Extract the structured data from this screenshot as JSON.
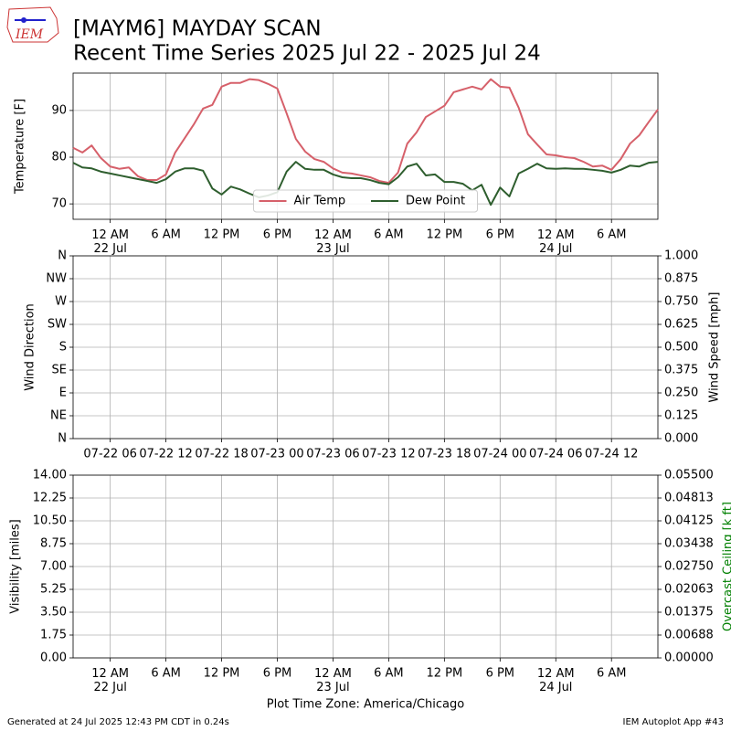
{
  "title": "[MAYM6] MAYDAY SCAN",
  "subtitle": "Recent Time Series 2025 Jul 22 - 2025 Jul 24",
  "logo": "IEM",
  "footer_left": "Generated at 24 Jul 2025 12:43 PM CDT in 0.24s",
  "footer_right": "IEM Autoplot App #43",
  "chart_data": [
    {
      "type": "line",
      "ylabel": "Temperature [F]",
      "grid": true,
      "legend": "lower center",
      "xlim": [
        "2025-07-21T20:00",
        "2025-07-24T11:00"
      ],
      "xticks": [
        {
          "value": "2025-07-22T00:00",
          "label": "12 AM\n22 Jul"
        },
        {
          "value": "2025-07-22T06:00",
          "label": "6 AM"
        },
        {
          "value": "2025-07-22T12:00",
          "label": "12 PM"
        },
        {
          "value": "2025-07-22T18:00",
          "label": "6 PM"
        },
        {
          "value": "2025-07-23T00:00",
          "label": "12 AM\n23 Jul"
        },
        {
          "value": "2025-07-23T06:00",
          "label": "6 AM"
        },
        {
          "value": "2025-07-23T12:00",
          "label": "12 PM"
        },
        {
          "value": "2025-07-23T18:00",
          "label": "6 PM"
        },
        {
          "value": "2025-07-24T00:00",
          "label": "12 AM\n24 Jul"
        },
        {
          "value": "2025-07-24T06:00",
          "label": "6 AM"
        }
      ],
      "ylim": [
        66.7,
        98.0
      ],
      "yticks": [
        70,
        80,
        90
      ],
      "x": [
        "2025-07-21T20:00",
        "2025-07-21T21:00",
        "2025-07-21T22:00",
        "2025-07-21T23:00",
        "2025-07-22T00:00",
        "2025-07-22T01:00",
        "2025-07-22T02:00",
        "2025-07-22T03:00",
        "2025-07-22T04:00",
        "2025-07-22T05:00",
        "2025-07-22T06:00",
        "2025-07-22T07:00",
        "2025-07-22T08:00",
        "2025-07-22T09:00",
        "2025-07-22T10:00",
        "2025-07-22T11:00",
        "2025-07-22T12:00",
        "2025-07-22T13:00",
        "2025-07-22T14:00",
        "2025-07-22T15:00",
        "2025-07-22T16:00",
        "2025-07-22T17:00",
        "2025-07-22T18:00",
        "2025-07-22T19:00",
        "2025-07-22T20:00",
        "2025-07-22T21:00",
        "2025-07-22T22:00",
        "2025-07-22T23:00",
        "2025-07-23T00:00",
        "2025-07-23T01:00",
        "2025-07-23T02:00",
        "2025-07-23T03:00",
        "2025-07-23T04:00",
        "2025-07-23T05:00",
        "2025-07-23T06:00",
        "2025-07-23T07:00",
        "2025-07-23T08:00",
        "2025-07-23T09:00",
        "2025-07-23T10:00",
        "2025-07-23T11:00",
        "2025-07-23T12:00",
        "2025-07-23T13:00",
        "2025-07-23T14:00",
        "2025-07-23T15:00",
        "2025-07-23T16:00",
        "2025-07-23T17:00",
        "2025-07-23T18:00",
        "2025-07-23T19:00",
        "2025-07-23T20:00",
        "2025-07-23T21:00",
        "2025-07-23T22:00",
        "2025-07-23T23:00",
        "2025-07-24T00:00",
        "2025-07-24T01:00",
        "2025-07-24T02:00",
        "2025-07-24T03:00",
        "2025-07-24T04:00",
        "2025-07-24T05:00",
        "2025-07-24T06:00",
        "2025-07-24T07:00",
        "2025-07-24T08:00",
        "2025-07-24T09:00",
        "2025-07-24T10:00",
        "2025-07-24T11:00"
      ],
      "series": [
        {
          "name": "Air Temp",
          "color": "#d6606a",
          "values": [
            82.0,
            81.0,
            82.5,
            79.8,
            78.0,
            77.5,
            77.8,
            75.9,
            75.1,
            75.1,
            76.3,
            81.0,
            84.0,
            87.0,
            90.4,
            91.2,
            95.1,
            95.9,
            95.9,
            96.7,
            96.5,
            95.7,
            94.7,
            89.4,
            83.9,
            81.2,
            79.6,
            79.0,
            77.6,
            76.7,
            76.5,
            76.1,
            75.7,
            74.9,
            74.5,
            76.7,
            82.9,
            85.3,
            88.6,
            89.8,
            91.0,
            93.9,
            94.5,
            95.1,
            94.5,
            96.7,
            95.1,
            94.9,
            90.6,
            84.9,
            82.7,
            80.6,
            80.4,
            80.0,
            79.8,
            79.0,
            78.0,
            78.2,
            77.3,
            79.6,
            82.9,
            84.7,
            87.5,
            90.2
          ]
        },
        {
          "name": "Dew Point",
          "color": "#2e5e2e",
          "values": [
            78.8,
            77.8,
            77.6,
            76.9,
            76.5,
            76.1,
            75.7,
            75.3,
            74.9,
            74.5,
            75.3,
            76.9,
            77.6,
            77.6,
            77.1,
            73.3,
            72.0,
            73.7,
            73.1,
            72.2,
            71.4,
            71.8,
            72.5,
            76.9,
            79.0,
            77.5,
            77.3,
            77.3,
            76.3,
            75.7,
            75.5,
            75.5,
            75.1,
            74.5,
            74.2,
            75.7,
            78.0,
            78.6,
            76.1,
            76.3,
            74.7,
            74.7,
            74.3,
            72.9,
            74.1,
            69.8,
            73.5,
            71.6,
            76.5,
            77.5,
            78.6,
            77.6,
            77.5,
            77.6,
            77.5,
            77.5,
            77.3,
            77.1,
            76.7,
            77.3,
            78.2,
            78.0,
            78.8,
            79.0
          ]
        }
      ]
    },
    {
      "type": "line",
      "ylabel": "Wind Direction",
      "y2label": "Wind Speed [mph]",
      "grid": true,
      "xlim": [
        "2025-07-21T20:00",
        "2025-07-24T11:00"
      ],
      "xticks": [
        {
          "value": "2025-07-22T00:00",
          "label": "07-22 06"
        },
        {
          "value": "2025-07-22T06:00",
          "label": "07-22 12"
        },
        {
          "value": "2025-07-22T12:00",
          "label": "07-22 18"
        },
        {
          "value": "2025-07-22T18:00",
          "label": "07-23 00"
        },
        {
          "value": "2025-07-23T00:00",
          "label": "07-23 06"
        },
        {
          "value": "2025-07-23T06:00",
          "label": "07-23 12"
        },
        {
          "value": "2025-07-23T12:00",
          "label": "07-23 18"
        },
        {
          "value": "2025-07-23T18:00",
          "label": "07-24 00"
        },
        {
          "value": "2025-07-24T00:00",
          "label": "07-24 06"
        },
        {
          "value": "2025-07-24T06:00",
          "label": "07-24 12"
        }
      ],
      "ylim": [
        0,
        360
      ],
      "yticks": [
        {
          "value": 0,
          "label": "N"
        },
        {
          "value": 45,
          "label": "NE"
        },
        {
          "value": 90,
          "label": "E"
        },
        {
          "value": 135,
          "label": "SE"
        },
        {
          "value": 180,
          "label": "S"
        },
        {
          "value": 225,
          "label": "SW"
        },
        {
          "value": 270,
          "label": "W"
        },
        {
          "value": 315,
          "label": "NW"
        },
        {
          "value": 360,
          "label": "N"
        }
      ],
      "y2lim": [
        0,
        1
      ],
      "y2ticks": [
        {
          "value": 0,
          "label": "0.000"
        },
        {
          "value": 0.125,
          "label": "0.125"
        },
        {
          "value": 0.25,
          "label": "0.250"
        },
        {
          "value": 0.375,
          "label": "0.375"
        },
        {
          "value": 0.5,
          "label": "0.500"
        },
        {
          "value": 0.625,
          "label": "0.625"
        },
        {
          "value": 0.75,
          "label": "0.750"
        },
        {
          "value": 0.875,
          "label": "0.875"
        },
        {
          "value": 1,
          "label": "1.000"
        }
      ],
      "series": []
    },
    {
      "type": "line",
      "ylabel": "Visibility [miles]",
      "y2label": "Overcast Ceiling [k ft]",
      "y2color": "#008000",
      "xlabel": "Plot Time Zone: America/Chicago",
      "grid": true,
      "xlim": [
        "2025-07-21T20:00",
        "2025-07-24T11:00"
      ],
      "xticks": [
        {
          "value": "2025-07-22T00:00",
          "label": "12 AM\n22 Jul"
        },
        {
          "value": "2025-07-22T06:00",
          "label": "6 AM"
        },
        {
          "value": "2025-07-22T12:00",
          "label": "12 PM"
        },
        {
          "value": "2025-07-22T18:00",
          "label": "6 PM"
        },
        {
          "value": "2025-07-23T00:00",
          "label": "12 AM\n23 Jul"
        },
        {
          "value": "2025-07-23T06:00",
          "label": "6 AM"
        },
        {
          "value": "2025-07-23T12:00",
          "label": "12 PM"
        },
        {
          "value": "2025-07-23T18:00",
          "label": "6 PM"
        },
        {
          "value": "2025-07-24T00:00",
          "label": "12 AM\n24 Jul"
        },
        {
          "value": "2025-07-24T06:00",
          "label": "6 AM"
        }
      ],
      "ylim": [
        0,
        14
      ],
      "yticks": [
        {
          "value": 0,
          "label": "0.00"
        },
        {
          "value": 1.75,
          "label": "1.75"
        },
        {
          "value": 3.5,
          "label": "3.50"
        },
        {
          "value": 5.25,
          "label": "5.25"
        },
        {
          "value": 7,
          "label": "7.00"
        },
        {
          "value": 8.75,
          "label": "8.75"
        },
        {
          "value": 10.5,
          "label": "10.50"
        },
        {
          "value": 12.25,
          "label": "12.25"
        },
        {
          "value": 14,
          "label": "14.00"
        }
      ],
      "y2lim": [
        0,
        0.055
      ],
      "y2ticks": [
        {
          "value": 0,
          "label": "0.00000"
        },
        {
          "value": 0.006875,
          "label": "0.00688"
        },
        {
          "value": 0.01375,
          "label": "0.01375"
        },
        {
          "value": 0.020625,
          "label": "0.02063"
        },
        {
          "value": 0.0275,
          "label": "0.02750"
        },
        {
          "value": 0.034375,
          "label": "0.03438"
        },
        {
          "value": 0.04125,
          "label": "0.04125"
        },
        {
          "value": 0.048125,
          "label": "0.04813"
        },
        {
          "value": 0.055,
          "label": "0.05500"
        }
      ],
      "series": []
    }
  ]
}
